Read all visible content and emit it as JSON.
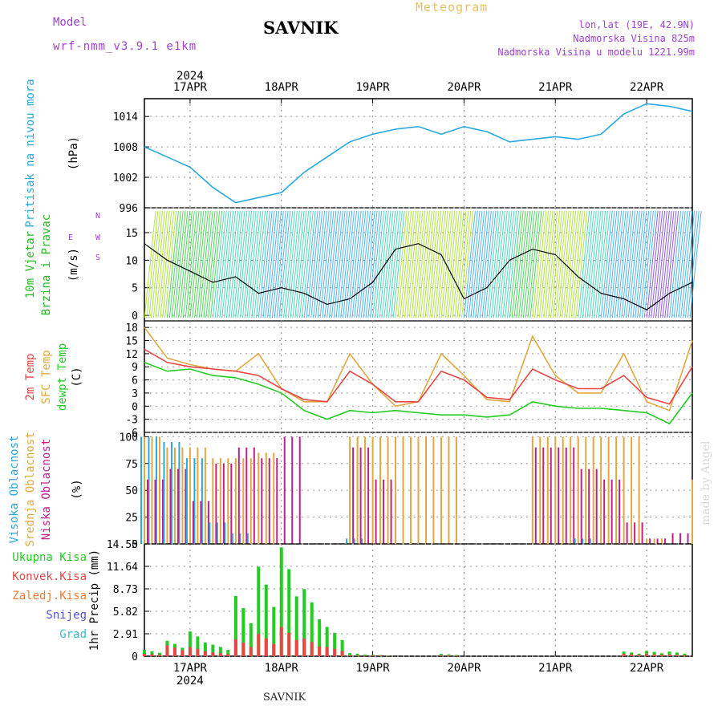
{
  "header": {
    "model_label": "Model",
    "model_name": "wrf-nmm_v3.9.1 e1km",
    "station": "SAVNIK",
    "product": "Meteogram",
    "lonlat": "lon,lat (19E, 42.9N)",
    "elevation": "Nadmorska Visina 825m",
    "model_elevation": "Nadmorska Visina u modelu 1221.99m",
    "credit": "made by Angel"
  },
  "footer": {
    "station": "SAVNIK"
  },
  "colors": {
    "pressure": "#29a8e0",
    "wind_label": "#22bb22",
    "t2m": "#e84545",
    "tsfc": "#e0a840",
    "dewpt": "#22cc22",
    "high_cloud": "#29a8e0",
    "mid_cloud": "#e0a840",
    "low_cloud": "#c0208a",
    "total_precip": "#22cc22",
    "conv_precip": "#e84545",
    "frozen_precip": "#f07a30",
    "snow": "#5050e0",
    "hail": "#30c0c0",
    "purple_text": "#a040d0"
  },
  "chart_data": [
    {
      "type": "line",
      "title": "Pritisak na nivou mora",
      "ylabel": "(hPa)",
      "x": [
        "2024-04-16T12",
        "2024-04-16T18",
        "2024-04-17T00",
        "2024-04-17T06",
        "2024-04-17T12",
        "2024-04-17T18",
        "2024-04-18T00",
        "2024-04-18T06",
        "2024-04-18T12",
        "2024-04-18T18",
        "2024-04-19T00",
        "2024-04-19T06",
        "2024-04-19T12",
        "2024-04-19T18",
        "2024-04-20T00",
        "2024-04-20T06",
        "2024-04-20T12",
        "2024-04-20T18",
        "2024-04-21T00",
        "2024-04-21T06",
        "2024-04-21T12",
        "2024-04-21T18",
        "2024-04-22T00",
        "2024-04-22T06",
        "2024-04-22T12"
      ],
      "series": [
        {
          "values": [
            1008,
            1006,
            1004,
            1000,
            997,
            998,
            999,
            1003,
            1006,
            1009,
            1010.5,
            1011.5,
            1012,
            1010.5,
            1012,
            1011,
            1009,
            1009.5,
            1010,
            1009.5,
            1010.5,
            1014.5,
            1016.5,
            1016,
            1015
          ]
        }
      ],
      "yticks": [
        996,
        1002,
        1008,
        1014
      ],
      "ylim": [
        996,
        1017.5
      ]
    },
    {
      "type": "line",
      "title": "10m Vjetar Brzina i Pravac",
      "ylabel": "(m/s)",
      "compass": {
        "west": "W",
        "east": "E",
        "north": "N",
        "south": "S"
      },
      "series": [
        {
          "values": [
            13,
            10,
            8,
            6,
            7,
            4,
            5,
            4,
            2,
            3,
            6,
            12,
            13,
            11,
            3,
            5,
            10,
            12,
            11,
            7,
            4,
            3,
            1,
            4,
            6
          ]
        }
      ],
      "yticks": [
        0,
        5,
        10,
        15
      ],
      "ylim": [
        -1,
        19.5
      ]
    },
    {
      "type": "line",
      "title": "2m Temp / SFC Temp / dewpt Temp",
      "ylabel": "(C)",
      "series_labels": [
        "2m Temp",
        "SFC Temp",
        "dewpt Temp"
      ],
      "series": [
        {
          "values": [
            13,
            10,
            9,
            8.5,
            8,
            7,
            4,
            1.5,
            1,
            8,
            5,
            1,
            1,
            8,
            6,
            2,
            1.5,
            8.5,
            6,
            4,
            4,
            7,
            2,
            0.5,
            9
          ]
        },
        {
          "values": [
            18,
            11,
            9.5,
            8.5,
            8,
            12,
            4,
            1,
            1,
            12,
            5,
            0,
            1,
            12,
            7,
            1.5,
            1,
            16,
            7,
            3,
            3,
            12,
            1,
            -1,
            15
          ]
        },
        {
          "values": [
            10,
            8,
            8.5,
            7,
            6.5,
            5,
            3,
            -1,
            -3,
            -1,
            -1.5,
            -1,
            -1.5,
            -2,
            -2,
            -2.5,
            -2,
            1,
            0,
            -0.5,
            -0.5,
            -1,
            -1.5,
            -4,
            3
          ]
        }
      ],
      "yticks": [
        -6,
        -3,
        0,
        3,
        6,
        9,
        12,
        15,
        18
      ],
      "ylim": [
        -6,
        19.5
      ]
    },
    {
      "type": "bar",
      "title": "Visoka Oblacnost / Srednja Oblacnost / Niska Oblacnost",
      "ylabel": "(%)",
      "series_labels": [
        "Visoka Oblacnost",
        "Srednja Oblacnost",
        "Niska Oblacnost"
      ],
      "series": [
        {
          "values": [
            100,
            95,
            80,
            20,
            10,
            0,
            0,
            0,
            0,
            5,
            0,
            0,
            0,
            0,
            0,
            0,
            0,
            0,
            0,
            5,
            0,
            0,
            0,
            0,
            0
          ]
        },
        {
          "values": [
            100,
            90,
            90,
            80,
            80,
            85,
            0,
            0,
            0,
            100,
            100,
            100,
            100,
            100,
            0,
            0,
            0,
            100,
            100,
            100,
            100,
            100,
            5,
            0,
            60
          ]
        },
        {
          "values": [
            60,
            70,
            40,
            75,
            90,
            80,
            100,
            0,
            0,
            90,
            60,
            0,
            0,
            0,
            0,
            0,
            0,
            90,
            90,
            70,
            60,
            20,
            5,
            10,
            10
          ]
        }
      ],
      "yticks": [
        0,
        25,
        50,
        75,
        100
      ],
      "ylim": [
        0,
        104
      ]
    },
    {
      "type": "bar",
      "title": "1hr Precip",
      "ylabel": "1hr Precip (mm)",
      "legend": [
        "Ukupna Kisa",
        "Konvek.Kisa",
        "Zaledj.Kisa",
        "Snijeg",
        "Grad"
      ],
      "total_values": [
        0.8,
        2.0,
        3.2,
        1.5,
        7.8,
        11.6,
        14.1,
        8.7,
        3.8,
        0.4,
        0.2,
        0,
        0,
        0.3,
        0,
        0,
        0,
        0,
        0,
        0,
        0,
        0.6,
        0.7,
        0.6,
        0
      ],
      "conv_values": [
        0.3,
        1.4,
        1.2,
        0.5,
        2.2,
        2.9,
        3.8,
        2.3,
        1.2,
        0.1,
        0.1,
        0,
        0,
        0.1,
        0,
        0,
        0,
        0,
        0,
        0,
        0,
        0.3,
        0.3,
        0.2,
        0
      ],
      "yticks": [
        0,
        2.91,
        5.82,
        8.73,
        11.64,
        14.55
      ],
      "ylim": [
        0,
        14.55
      ]
    }
  ],
  "x_axis": {
    "top_year": "2024",
    "bottom_year": "2024",
    "labels": [
      "17APR",
      "18APR",
      "19APR",
      "20APR",
      "21APR",
      "22APR"
    ],
    "start": "2024-04-16T12",
    "end": "2024-04-22T12"
  }
}
